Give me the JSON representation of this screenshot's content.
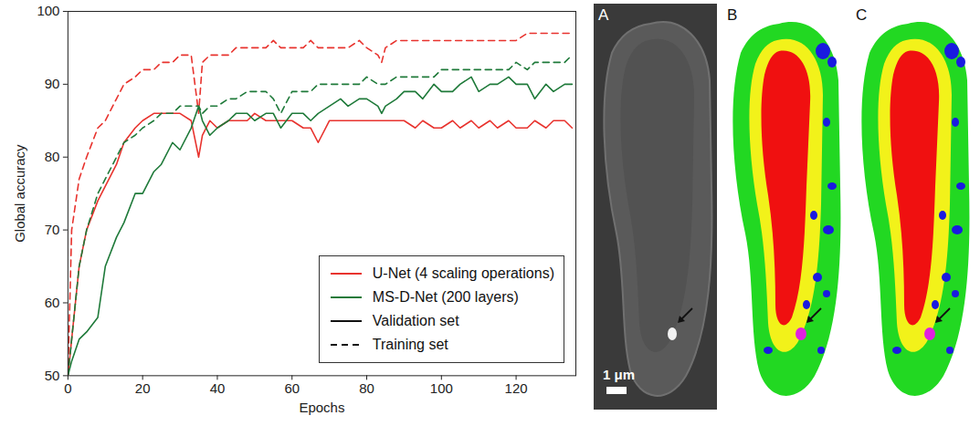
{
  "chart_data": {
    "type": "line",
    "x_label": "Epochs",
    "y_label": "Global accuracy",
    "x": [
      0,
      1,
      3,
      5,
      8,
      10,
      13,
      15,
      18,
      20,
      23,
      25,
      28,
      30,
      33,
      35,
      36,
      38,
      40,
      43,
      45,
      48,
      50,
      53,
      55,
      57,
      60,
      63,
      65,
      67,
      70,
      73,
      75,
      78,
      80,
      83,
      84,
      85,
      88,
      90,
      93,
      95,
      98,
      100,
      103,
      105,
      108,
      110,
      113,
      115,
      118,
      120,
      123,
      125,
      128,
      130,
      133,
      135
    ],
    "series": [
      {
        "name": "U-Net (4 scaling operations)",
        "set": "Validation set",
        "color": "#e8332e",
        "line_style": "solid",
        "values": [
          50,
          55,
          65,
          70,
          74,
          76,
          79,
          82,
          84,
          85,
          86,
          86,
          86,
          86,
          85,
          80,
          83,
          85,
          84,
          85,
          85,
          85,
          86,
          85,
          85,
          85,
          85,
          84,
          84,
          82,
          85,
          85,
          85,
          85,
          85,
          85,
          85,
          85,
          85,
          85,
          84,
          85,
          84,
          84,
          85,
          84,
          85,
          84,
          85,
          84,
          85,
          84,
          84,
          85,
          84,
          85,
          85,
          84
        ]
      },
      {
        "name": "U-Net (4 scaling operations)",
        "set": "Training set",
        "color": "#e8332e",
        "line_style": "dashed",
        "values": [
          50,
          70,
          77,
          80,
          84,
          85,
          88,
          90,
          91,
          92,
          92,
          93,
          93,
          94,
          94,
          86,
          93,
          94,
          94,
          94,
          95,
          95,
          95,
          95,
          96,
          95,
          95,
          95,
          96,
          95,
          95,
          95,
          95,
          96,
          95,
          94,
          93,
          95,
          96,
          96,
          96,
          96,
          96,
          96,
          96,
          96,
          96,
          96,
          96,
          96,
          96,
          96,
          97,
          97,
          97,
          97,
          97,
          97
        ]
      },
      {
        "name": "MS-D-Net (200 layers)",
        "set": "Validation set",
        "color": "#1f7a3a",
        "line_style": "solid",
        "values": [
          50,
          52,
          55,
          56,
          58,
          65,
          69,
          71,
          75,
          75,
          78,
          79,
          82,
          81,
          84,
          87,
          85,
          83,
          84,
          85,
          86,
          86,
          85,
          86,
          86,
          84,
          86,
          86,
          85,
          86,
          87,
          88,
          87,
          88,
          88,
          87,
          86,
          87,
          88,
          89,
          89,
          88,
          90,
          89,
          89,
          90,
          91,
          89,
          90,
          90,
          91,
          90,
          90,
          88,
          90,
          89,
          90,
          90
        ]
      },
      {
        "name": "MS-D-Net (200 layers)",
        "set": "Training set",
        "color": "#1f7a3a",
        "line_style": "dashed",
        "values": [
          50,
          55,
          65,
          70,
          75,
          77,
          80,
          82,
          83,
          84,
          85,
          86,
          86,
          87,
          87,
          87,
          86,
          87,
          87,
          88,
          88,
          89,
          89,
          89,
          88,
          86,
          89,
          89,
          89,
          90,
          90,
          90,
          90,
          90,
          91,
          90,
          90,
          90,
          91,
          91,
          91,
          91,
          91,
          92,
          92,
          92,
          92,
          92,
          92,
          92,
          92,
          93,
          92,
          93,
          93,
          93,
          93,
          94
        ]
      }
    ],
    "xlim": [
      0,
      136
    ],
    "xticks": [
      0,
      20,
      40,
      60,
      80,
      100,
      120
    ],
    "ylim": [
      50,
      100
    ],
    "yticks": [
      50,
      60,
      70,
      80,
      90,
      100
    ],
    "grid": false,
    "legend": "lower right"
  },
  "image_panels": {
    "labels": [
      "A",
      "B",
      "C"
    ],
    "scale_bar": "1 μm"
  }
}
